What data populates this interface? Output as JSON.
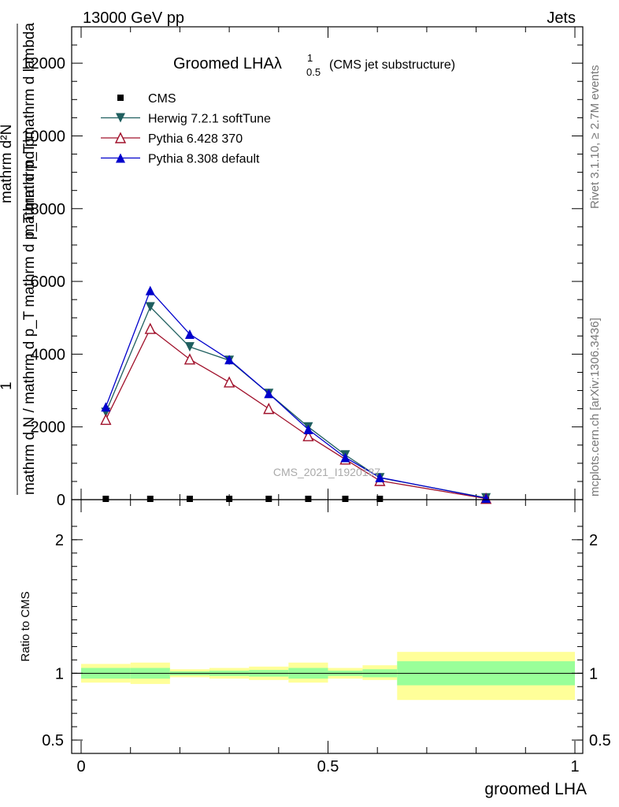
{
  "header": {
    "left": "13000 GeV pp",
    "right": "Jets"
  },
  "side_labels": {
    "rivet": "Rivet 3.1.10, ≥ 2.7M events",
    "mcplots": "mcplots.cern.ch [arXiv:1306.3436]"
  },
  "watermark": "CMS_2021_I1920187",
  "chart_data": [
    {
      "type": "line",
      "title": "Groomed LHA",
      "title_symbol": "λ",
      "title_sup": "1",
      "title_sub": "0.5",
      "title_note": "(CMS jet substructure)",
      "ylabel_lines": [
        "mathrm d²N",
        "mathrm d p_T mathrm d lambda",
        "mathrm d N / mathrm d p_T mathrm d p_T mathrmd p",
        "1"
      ],
      "xlim": [
        0,
        1
      ],
      "ylim": [
        0,
        13000
      ],
      "y_ticks": [
        {
          "value": 0,
          "label": "0"
        },
        {
          "value": 2000,
          "label": "2000"
        },
        {
          "value": 4000,
          "label": "4000"
        },
        {
          "value": 6000,
          "label": "6000"
        },
        {
          "value": 8000,
          "label": "8000"
        },
        {
          "value": 10000,
          "label": "10000"
        },
        {
          "value": 12000,
          "label": "12000"
        }
      ],
      "legend_position": "top-left",
      "x": [
        0.05,
        0.14,
        0.22,
        0.3,
        0.38,
        0.46,
        0.535,
        0.605,
        0.82
      ],
      "series": [
        {
          "name": "CMS",
          "color": "#000000",
          "marker": "square",
          "values": [
            0,
            0,
            0,
            0,
            0,
            0,
            0,
            0,
            0
          ]
        },
        {
          "name": "Herwig 7.2.1 softTune",
          "color": "#1f5f5f",
          "marker": "triangle-down",
          "values": [
            2400,
            5300,
            4200,
            3830,
            2920,
            2000,
            1230,
            600,
            50
          ]
        },
        {
          "name": "Pythia 6.428 370",
          "color": "#a0102a",
          "marker": "triangle-up-open",
          "values": [
            2200,
            4700,
            3860,
            3230,
            2500,
            1750,
            1110,
            520,
            30
          ]
        },
        {
          "name": "Pythia 8.308 default",
          "color": "#0000cc",
          "marker": "triangle-up",
          "values": [
            2550,
            5750,
            4550,
            3850,
            2920,
            1930,
            1160,
            610,
            40
          ]
        }
      ]
    },
    {
      "type": "area",
      "ylabel": "Ratio to CMS",
      "xlabel": "groomed LHA",
      "ylim": [
        0.4,
        2.3
      ],
      "y_ticks": [
        {
          "value": 0.5,
          "label": "0.5"
        },
        {
          "value": 1,
          "label": "1"
        },
        {
          "value": 2,
          "label": "2"
        }
      ],
      "x_ticks": [
        {
          "value": 0,
          "label": "0"
        },
        {
          "value": 0.5,
          "label": "0.5"
        },
        {
          "value": 1,
          "label": "1"
        }
      ],
      "band_colors": {
        "outer": "#ffff99",
        "inner": "#99ff99"
      },
      "bins": [
        {
          "lo": 0.0,
          "hi": 0.1,
          "inner": [
            0.96,
            1.04
          ],
          "outer": [
            0.93,
            1.07
          ]
        },
        {
          "lo": 0.1,
          "hi": 0.18,
          "inner": [
            0.96,
            1.04
          ],
          "outer": [
            0.92,
            1.08
          ]
        },
        {
          "lo": 0.18,
          "hi": 0.26,
          "inner": [
            0.985,
            1.015
          ],
          "outer": [
            0.97,
            1.03
          ]
        },
        {
          "lo": 0.26,
          "hi": 0.34,
          "inner": [
            0.98,
            1.02
          ],
          "outer": [
            0.96,
            1.04
          ]
        },
        {
          "lo": 0.34,
          "hi": 0.42,
          "inner": [
            0.975,
            1.025
          ],
          "outer": [
            0.95,
            1.05
          ]
        },
        {
          "lo": 0.42,
          "hi": 0.5,
          "inner": [
            0.96,
            1.04
          ],
          "outer": [
            0.93,
            1.08
          ]
        },
        {
          "lo": 0.5,
          "hi": 0.57,
          "inner": [
            0.98,
            1.02
          ],
          "outer": [
            0.96,
            1.04
          ]
        },
        {
          "lo": 0.57,
          "hi": 0.64,
          "inner": [
            0.97,
            1.03
          ],
          "outer": [
            0.95,
            1.06
          ]
        },
        {
          "lo": 0.64,
          "hi": 1.0,
          "inner": [
            0.91,
            1.09
          ],
          "outer": [
            0.8,
            1.16
          ]
        }
      ]
    }
  ]
}
